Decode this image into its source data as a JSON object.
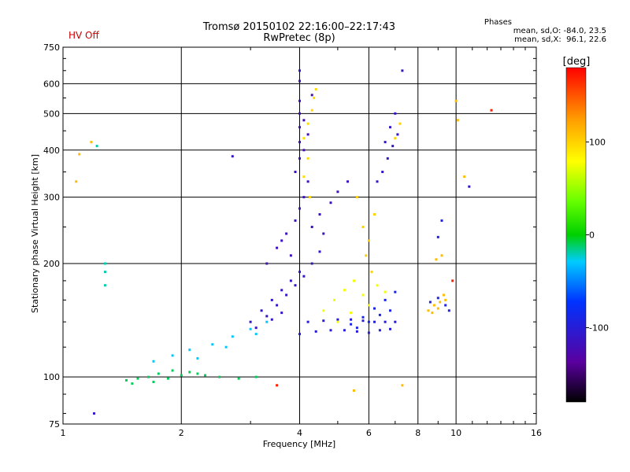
{
  "header": {
    "title": "Tromsø 20150102 22:16:00–22:17:43",
    "subtitle": "RwPretec (8p)",
    "hv_status": "HV Off",
    "phases_title": "Phases",
    "phases_o": "mean, sd,O: -84.0, 23.5",
    "phases_x": "mean, sd,X:  96.1, 22.6"
  },
  "colors": {
    "hv_status": "#cc0000"
  },
  "chart_data": {
    "type": "scatter",
    "xlabel": "Frequency [MHz]",
    "ylabel": "Stationary phase Virtual Height [km]",
    "xscale": "log",
    "yscale": "log",
    "xlim": [
      1,
      16
    ],
    "ylim": [
      75,
      750
    ],
    "x_ticks": [
      1,
      2,
      4,
      6,
      8,
      10,
      16
    ],
    "x_tick_labels": [
      "1",
      "2",
      "4",
      "6",
      "8",
      "10",
      "16"
    ],
    "y_ticks": [
      75,
      100,
      200,
      300,
      400,
      500,
      600,
      750
    ],
    "y_tick_labels": [
      "75",
      "100",
      "200",
      "300",
      "400",
      "500",
      "600",
      "750"
    ],
    "grid": true,
    "colorbar": {
      "label": "[deg]",
      "range": [
        -180,
        180
      ],
      "ticks": [
        100,
        0,
        -100
      ],
      "tick_labels": [
        "100",
        "0",
        "-100"
      ]
    },
    "clusters": [
      {
        "name": "lowband-E",
        "phase": -10,
        "points": [
          [
            1.45,
            98
          ],
          [
            1.55,
            99
          ],
          [
            1.65,
            100
          ],
          [
            1.75,
            102
          ],
          [
            1.9,
            104
          ],
          [
            2.1,
            103
          ],
          [
            2.3,
            101
          ],
          [
            2.5,
            100
          ],
          [
            2.8,
            99
          ],
          [
            3.1,
            100
          ],
          [
            1.5,
            96
          ],
          [
            1.7,
            97
          ],
          [
            1.85,
            99
          ],
          [
            2.0,
            101
          ],
          [
            2.2,
            102
          ]
        ]
      },
      {
        "name": "E-layer-rise",
        "phase": -30,
        "points": [
          [
            1.7,
            110
          ],
          [
            1.9,
            114
          ],
          [
            2.1,
            118
          ],
          [
            2.4,
            122
          ],
          [
            2.7,
            128
          ],
          [
            3.0,
            134
          ],
          [
            3.3,
            140
          ],
          [
            2.2,
            112
          ],
          [
            2.6,
            120
          ],
          [
            3.1,
            130
          ]
        ]
      },
      {
        "name": "F-trace-low",
        "phase": -110,
        "points": [
          [
            3.0,
            140
          ],
          [
            3.2,
            150
          ],
          [
            3.4,
            160
          ],
          [
            3.6,
            170
          ],
          [
            3.8,
            180
          ],
          [
            4.0,
            190
          ],
          [
            3.3,
            145
          ],
          [
            3.5,
            155
          ],
          [
            3.7,
            165
          ],
          [
            3.9,
            175
          ],
          [
            4.1,
            185
          ],
          [
            4.3,
            200
          ],
          [
            4.5,
            215
          ],
          [
            3.1,
            135
          ],
          [
            3.4,
            142
          ],
          [
            3.6,
            148
          ]
        ]
      },
      {
        "name": "F-trace-mid",
        "phase": -115,
        "points": [
          [
            3.3,
            200
          ],
          [
            3.5,
            220
          ],
          [
            3.7,
            240
          ],
          [
            3.9,
            260
          ],
          [
            4.0,
            280
          ],
          [
            4.1,
            300
          ],
          [
            4.2,
            330
          ],
          [
            3.8,
            210
          ],
          [
            3.6,
            230
          ],
          [
            4.3,
            250
          ],
          [
            4.5,
            270
          ],
          [
            4.8,
            290
          ],
          [
            5.0,
            310
          ],
          [
            5.3,
            330
          ],
          [
            4.6,
            240
          ]
        ]
      },
      {
        "name": "F-trace-high",
        "phase": -120,
        "points": [
          [
            3.9,
            350
          ],
          [
            4.0,
            380
          ],
          [
            4.0,
            420
          ],
          [
            4.0,
            460
          ],
          [
            4.0,
            500
          ],
          [
            4.0,
            540
          ],
          [
            4.1,
            400
          ],
          [
            4.2,
            440
          ],
          [
            4.1,
            480
          ],
          [
            4.3,
            560
          ],
          [
            4.0,
            610
          ]
        ]
      },
      {
        "name": "X-trace",
        "phase": 95,
        "points": [
          [
            4.1,
            430
          ],
          [
            4.2,
            470
          ],
          [
            4.3,
            510
          ],
          [
            4.35,
            550
          ],
          [
            4.4,
            580
          ],
          [
            4.2,
            380
          ],
          [
            4.1,
            340
          ],
          [
            4.25,
            300
          ]
        ]
      },
      {
        "name": "oblique-flat",
        "phase": -100,
        "points": [
          [
            4.0,
            130
          ],
          [
            4.4,
            132
          ],
          [
            4.8,
            133
          ],
          [
            5.2,
            133
          ],
          [
            5.6,
            132
          ],
          [
            6.0,
            131
          ],
          [
            6.4,
            133
          ],
          [
            6.8,
            134
          ],
          [
            4.2,
            140
          ],
          [
            4.6,
            141
          ],
          [
            5.0,
            142
          ],
          [
            5.4,
            142
          ],
          [
            5.8,
            141
          ],
          [
            6.2,
            140
          ],
          [
            6.6,
            140
          ],
          [
            7.0,
            140
          ]
        ]
      },
      {
        "name": "oblique-rising",
        "phase": -90,
        "points": [
          [
            5.4,
            138
          ],
          [
            5.8,
            144
          ],
          [
            6.2,
            152
          ],
          [
            6.6,
            160
          ],
          [
            7.0,
            168
          ],
          [
            5.6,
            135
          ],
          [
            6.0,
            140
          ],
          [
            6.4,
            146
          ],
          [
            6.8,
            150
          ]
        ]
      },
      {
        "name": "orange-mid",
        "phase": 75,
        "points": [
          [
            4.6,
            150
          ],
          [
            4.9,
            160
          ],
          [
            5.2,
            170
          ],
          [
            5.5,
            180
          ],
          [
            5.8,
            165
          ],
          [
            6.0,
            155
          ],
          [
            6.3,
            175
          ],
          [
            6.6,
            168
          ],
          [
            5.0,
            140
          ],
          [
            5.4,
            148
          ]
        ]
      },
      {
        "name": "spread-F",
        "phase": -110,
        "points": [
          [
            6.5,
            350
          ],
          [
            6.7,
            380
          ],
          [
            6.9,
            410
          ],
          [
            7.1,
            440
          ],
          [
            6.3,
            330
          ],
          [
            7.0,
            500
          ],
          [
            6.8,
            460
          ],
          [
            6.6,
            420
          ]
        ]
      },
      {
        "name": "yellow-spread",
        "phase": 100,
        "points": [
          [
            5.8,
            250
          ],
          [
            6.0,
            230
          ],
          [
            6.2,
            270
          ],
          [
            5.9,
            210
          ],
          [
            6.1,
            190
          ],
          [
            5.6,
            300
          ],
          [
            7.2,
            470
          ],
          [
            7.0,
            430
          ]
        ]
      },
      {
        "name": "high-freq",
        "phase": 110,
        "points": [
          [
            8.5,
            150
          ],
          [
            8.8,
            155
          ],
          [
            9.1,
            158
          ],
          [
            9.4,
            160
          ],
          [
            8.7,
            148
          ],
          [
            9.0,
            152
          ],
          [
            8.9,
            205
          ],
          [
            9.2,
            210
          ],
          [
            9.3,
            165
          ]
        ]
      },
      {
        "name": "high-freq-blue",
        "phase": -95,
        "points": [
          [
            8.6,
            158
          ],
          [
            9.0,
            162
          ],
          [
            9.4,
            155
          ],
          [
            9.6,
            150
          ],
          [
            9.0,
            235
          ],
          [
            9.2,
            260
          ]
        ]
      },
      {
        "name": "stray-cyan",
        "phase": -20,
        "points": [
          [
            1.28,
            200
          ],
          [
            1.28,
            175
          ],
          [
            1.28,
            190
          ],
          [
            1.22,
            410
          ]
        ]
      },
      {
        "name": "stray-yellow",
        "phase": 110,
        "points": [
          [
            1.18,
            420
          ],
          [
            1.1,
            390
          ],
          [
            1.08,
            330
          ],
          [
            10.0,
            540
          ],
          [
            10.1,
            480
          ],
          [
            10.5,
            340
          ],
          [
            7.3,
            95
          ],
          [
            5.5,
            92
          ]
        ]
      },
      {
        "name": "stray-blue",
        "phase": -110,
        "points": [
          [
            1.2,
            80
          ],
          [
            2.7,
            385
          ],
          [
            10.8,
            320
          ],
          [
            7.3,
            650
          ],
          [
            4.0,
            650
          ]
        ]
      },
      {
        "name": "stray-red",
        "phase": 170,
        "points": [
          [
            12.3,
            510
          ],
          [
            9.8,
            180
          ],
          [
            3.5,
            95
          ]
        ]
      }
    ]
  }
}
